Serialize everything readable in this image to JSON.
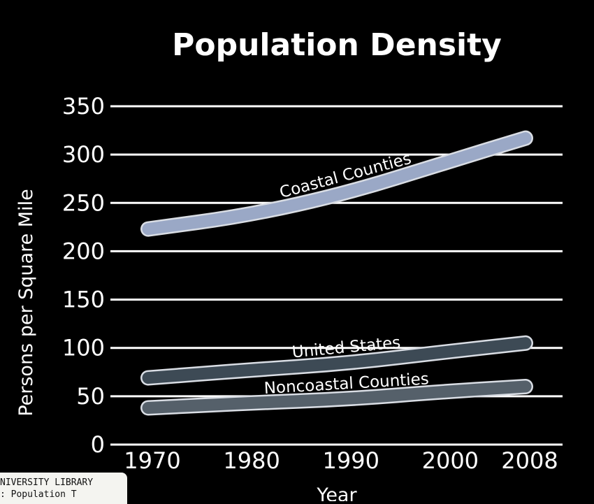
{
  "chart_data": {
    "type": "line",
    "title": "Population Density",
    "xlabel": "Year",
    "ylabel": "Persons per Square Mile",
    "x": [
      1970,
      1980,
      1990,
      2000,
      2008
    ],
    "x_tick_labels": [
      "1970",
      "1980",
      "1990",
      "2000",
      "2008"
    ],
    "y_ticks": [
      0,
      50,
      100,
      150,
      200,
      250,
      300,
      350
    ],
    "y_tick_labels": [
      "0",
      "50",
      "100",
      "150",
      "200",
      "250",
      "300",
      "350"
    ],
    "ylim": [
      0,
      350
    ],
    "grid": true,
    "legend": "none",
    "series": [
      {
        "name": "Coastal Counties",
        "values": [
          223,
          237,
          260,
          292,
          317
        ],
        "color": "#9aa8c6"
      },
      {
        "name": "United States",
        "values": [
          69,
          77,
          84,
          96,
          105
        ],
        "color": "#3d4a55"
      },
      {
        "name": "Noncoastal Counties",
        "values": [
          38,
          43,
          47,
          55,
          60
        ],
        "color": "#55606a"
      }
    ]
  },
  "overlay": {
    "library_label_line1": "NIVERSITY LIBRARY",
    "library_label_line2": ": Population T"
  }
}
